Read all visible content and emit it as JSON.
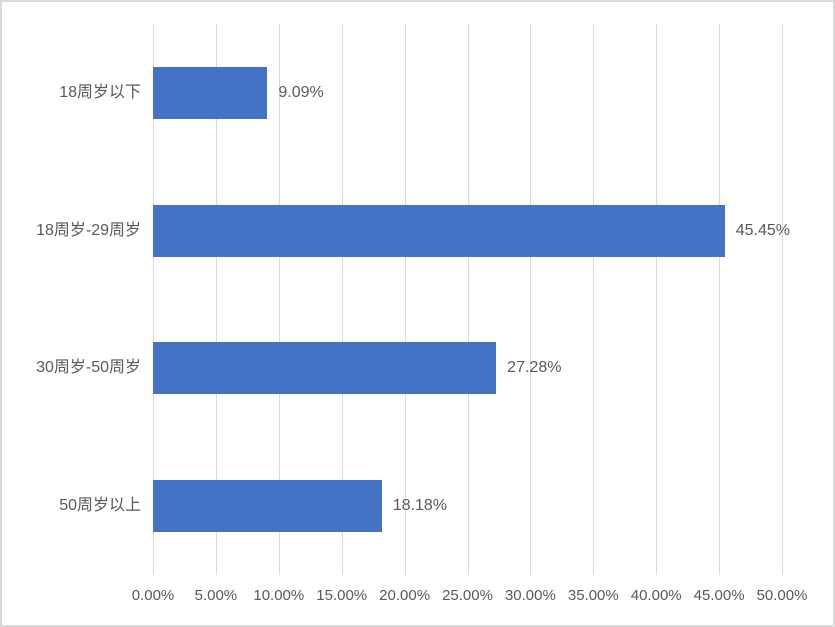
{
  "chart_data": {
    "type": "bar",
    "orientation": "horizontal",
    "title": "",
    "categories": [
      "18周岁以下",
      "18周岁-29周岁",
      "30周岁-50周岁",
      "50周岁以上"
    ],
    "values": [
      9.09,
      45.45,
      27.28,
      18.18
    ],
    "data_labels": [
      "9.09%",
      "45.45%",
      "27.28%",
      "18.18%"
    ],
    "x_tick_labels": [
      "0.00%",
      "5.00%",
      "10.00%",
      "15.00%",
      "20.00%",
      "25.00%",
      "30.00%",
      "35.00%",
      "40.00%",
      "45.00%",
      "50.00%"
    ],
    "xlim": [
      0,
      50
    ],
    "x_tick_step": 5,
    "grid": "vertical-only",
    "legend_position": "none",
    "colors": {
      "bar": "#4472c4",
      "gridline": "#d9d9d9",
      "text": "#595959",
      "frame_border": "#d9d9d9",
      "background": "#ffffff"
    }
  }
}
